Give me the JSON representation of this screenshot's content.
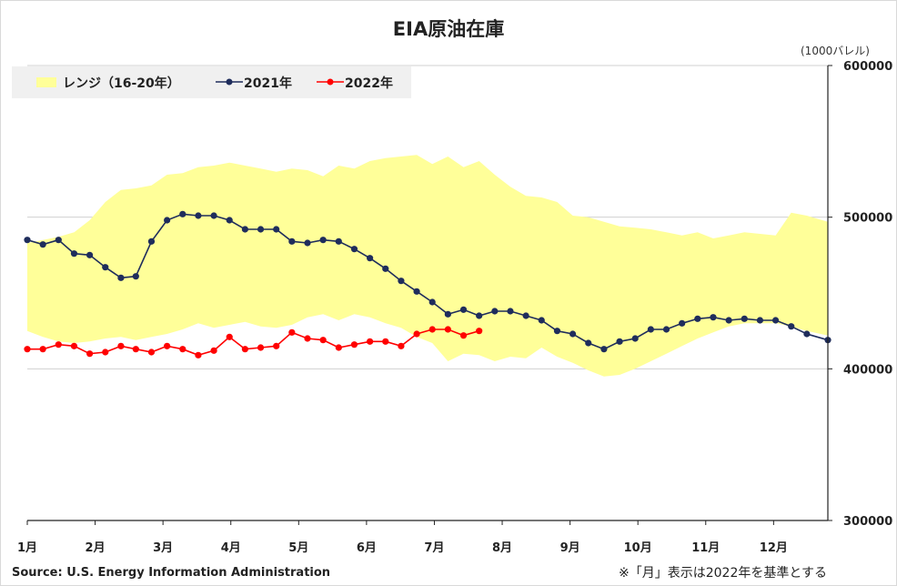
{
  "chart_data": {
    "type": "line",
    "title": "EIA原油在庫",
    "unit_label": "(1000バレル)",
    "ylim": [
      300000,
      600000
    ],
    "y_ticks": [
      300000,
      400000,
      500000,
      600000
    ],
    "y_tick_labels": [
      "300000",
      "400000",
      "500000",
      "600000"
    ],
    "xlim": [
      1,
      12.8
    ],
    "x_ticks": [
      1,
      2,
      3,
      4,
      5,
      6,
      7,
      8,
      9,
      10,
      11,
      12
    ],
    "x_tick_labels": [
      "1月",
      "2月",
      "3月",
      "4月",
      "5月",
      "6月",
      "7月",
      "8月",
      "9月",
      "10月",
      "11月",
      "12月"
    ],
    "grid": "horizontal",
    "legend_position": "top-left",
    "range_band": {
      "name": "レンジ（16-20年）",
      "color": "#ffff99",
      "x": [
        1.0,
        1.23,
        1.46,
        1.69,
        1.92,
        2.15,
        2.38,
        2.6,
        2.83,
        3.06,
        3.29,
        3.52,
        3.75,
        3.98,
        4.21,
        4.44,
        4.67,
        4.9,
        5.13,
        5.36,
        5.59,
        5.82,
        6.05,
        6.28,
        6.51,
        6.74,
        6.97,
        7.2,
        7.43,
        7.66,
        7.89,
        8.12,
        8.35,
        8.58,
        8.81,
        9.04,
        9.27,
        9.5,
        9.73,
        9.96,
        10.19,
        10.42,
        10.65,
        10.88,
        11.11,
        11.34,
        11.57,
        11.8,
        12.03,
        12.26,
        12.49,
        12.8
      ],
      "upper": [
        483000,
        485000,
        487000,
        490000,
        498000,
        510000,
        518000,
        519000,
        521000,
        528000,
        529000,
        533000,
        534000,
        536000,
        534000,
        532000,
        530000,
        532000,
        531000,
        527000,
        534000,
        532000,
        537000,
        539000,
        540000,
        541000,
        535000,
        540000,
        533000,
        537000,
        528000,
        520000,
        514000,
        513000,
        510000,
        501000,
        500000,
        497000,
        494000,
        493000,
        492000,
        490000,
        488000,
        490000,
        486000,
        488000,
        490000,
        489000,
        488000,
        503000,
        501000,
        497000
      ],
      "lower": [
        425000,
        421000,
        418000,
        417000,
        418000,
        420000,
        421000,
        419000,
        421000,
        423000,
        426000,
        430000,
        427000,
        429000,
        431000,
        428000,
        427000,
        429000,
        434000,
        436000,
        432000,
        436000,
        434000,
        430000,
        427000,
        421000,
        417000,
        405000,
        410000,
        409000,
        405000,
        408000,
        407000,
        414000,
        408000,
        404000,
        399000,
        395000,
        396000,
        400000,
        405000,
        410000,
        415000,
        420000,
        424000,
        428000,
        430000,
        430000,
        430000,
        428000,
        425000,
        422000
      ]
    },
    "series": [
      {
        "name": "2021年",
        "color": "#1f2d5c",
        "x": [
          1.0,
          1.23,
          1.46,
          1.69,
          1.92,
          2.15,
          2.38,
          2.6,
          2.83,
          3.06,
          3.29,
          3.52,
          3.75,
          3.98,
          4.21,
          4.44,
          4.67,
          4.9,
          5.13,
          5.36,
          5.59,
          5.82,
          6.05,
          6.28,
          6.51,
          6.74,
          6.97,
          7.2,
          7.43,
          7.66,
          7.89,
          8.12,
          8.35,
          8.58,
          8.81,
          9.04,
          9.27,
          9.5,
          9.73,
          9.96,
          10.19,
          10.42,
          10.65,
          10.88,
          11.11,
          11.34,
          11.57,
          11.8,
          12.03,
          12.26,
          12.49,
          12.8
        ],
        "values": [
          485000,
          482000,
          485000,
          476000,
          475000,
          467000,
          460000,
          461000,
          484000,
          498000,
          502000,
          501000,
          501000,
          498000,
          492000,
          492000,
          492000,
          484000,
          483000,
          485000,
          484000,
          479000,
          473000,
          466000,
          458000,
          451000,
          444000,
          436000,
          439000,
          435000,
          438000,
          438000,
          435000,
          432000,
          425000,
          423000,
          417000,
          413000,
          418000,
          420000,
          426000,
          426000,
          430000,
          433000,
          434000,
          432000,
          433000,
          432000,
          432000,
          428000,
          423000,
          419000
        ]
      },
      {
        "name": "2022年",
        "color": "#ff0000",
        "x": [
          1.0,
          1.23,
          1.46,
          1.69,
          1.92,
          2.15,
          2.38,
          2.6,
          2.83,
          3.06,
          3.29,
          3.52,
          3.75,
          3.98,
          4.21,
          4.44,
          4.67,
          4.9,
          5.13,
          5.36,
          5.59,
          5.82,
          6.05,
          6.28,
          6.51,
          6.74,
          6.97,
          7.2,
          7.43,
          7.66
        ],
        "values": [
          413000,
          413000,
          416000,
          415000,
          410000,
          411000,
          415000,
          413000,
          411000,
          415000,
          413000,
          409000,
          412000,
          421000,
          413000,
          414000,
          415000,
          424000,
          420000,
          419000,
          414000,
          416000,
          418000,
          418000,
          415000,
          423000,
          426000,
          426000,
          422000,
          425000
        ]
      }
    ]
  },
  "source": "Source: U.S. Energy Information Administration",
  "note": "※「月」表示は2022年を基準とする"
}
